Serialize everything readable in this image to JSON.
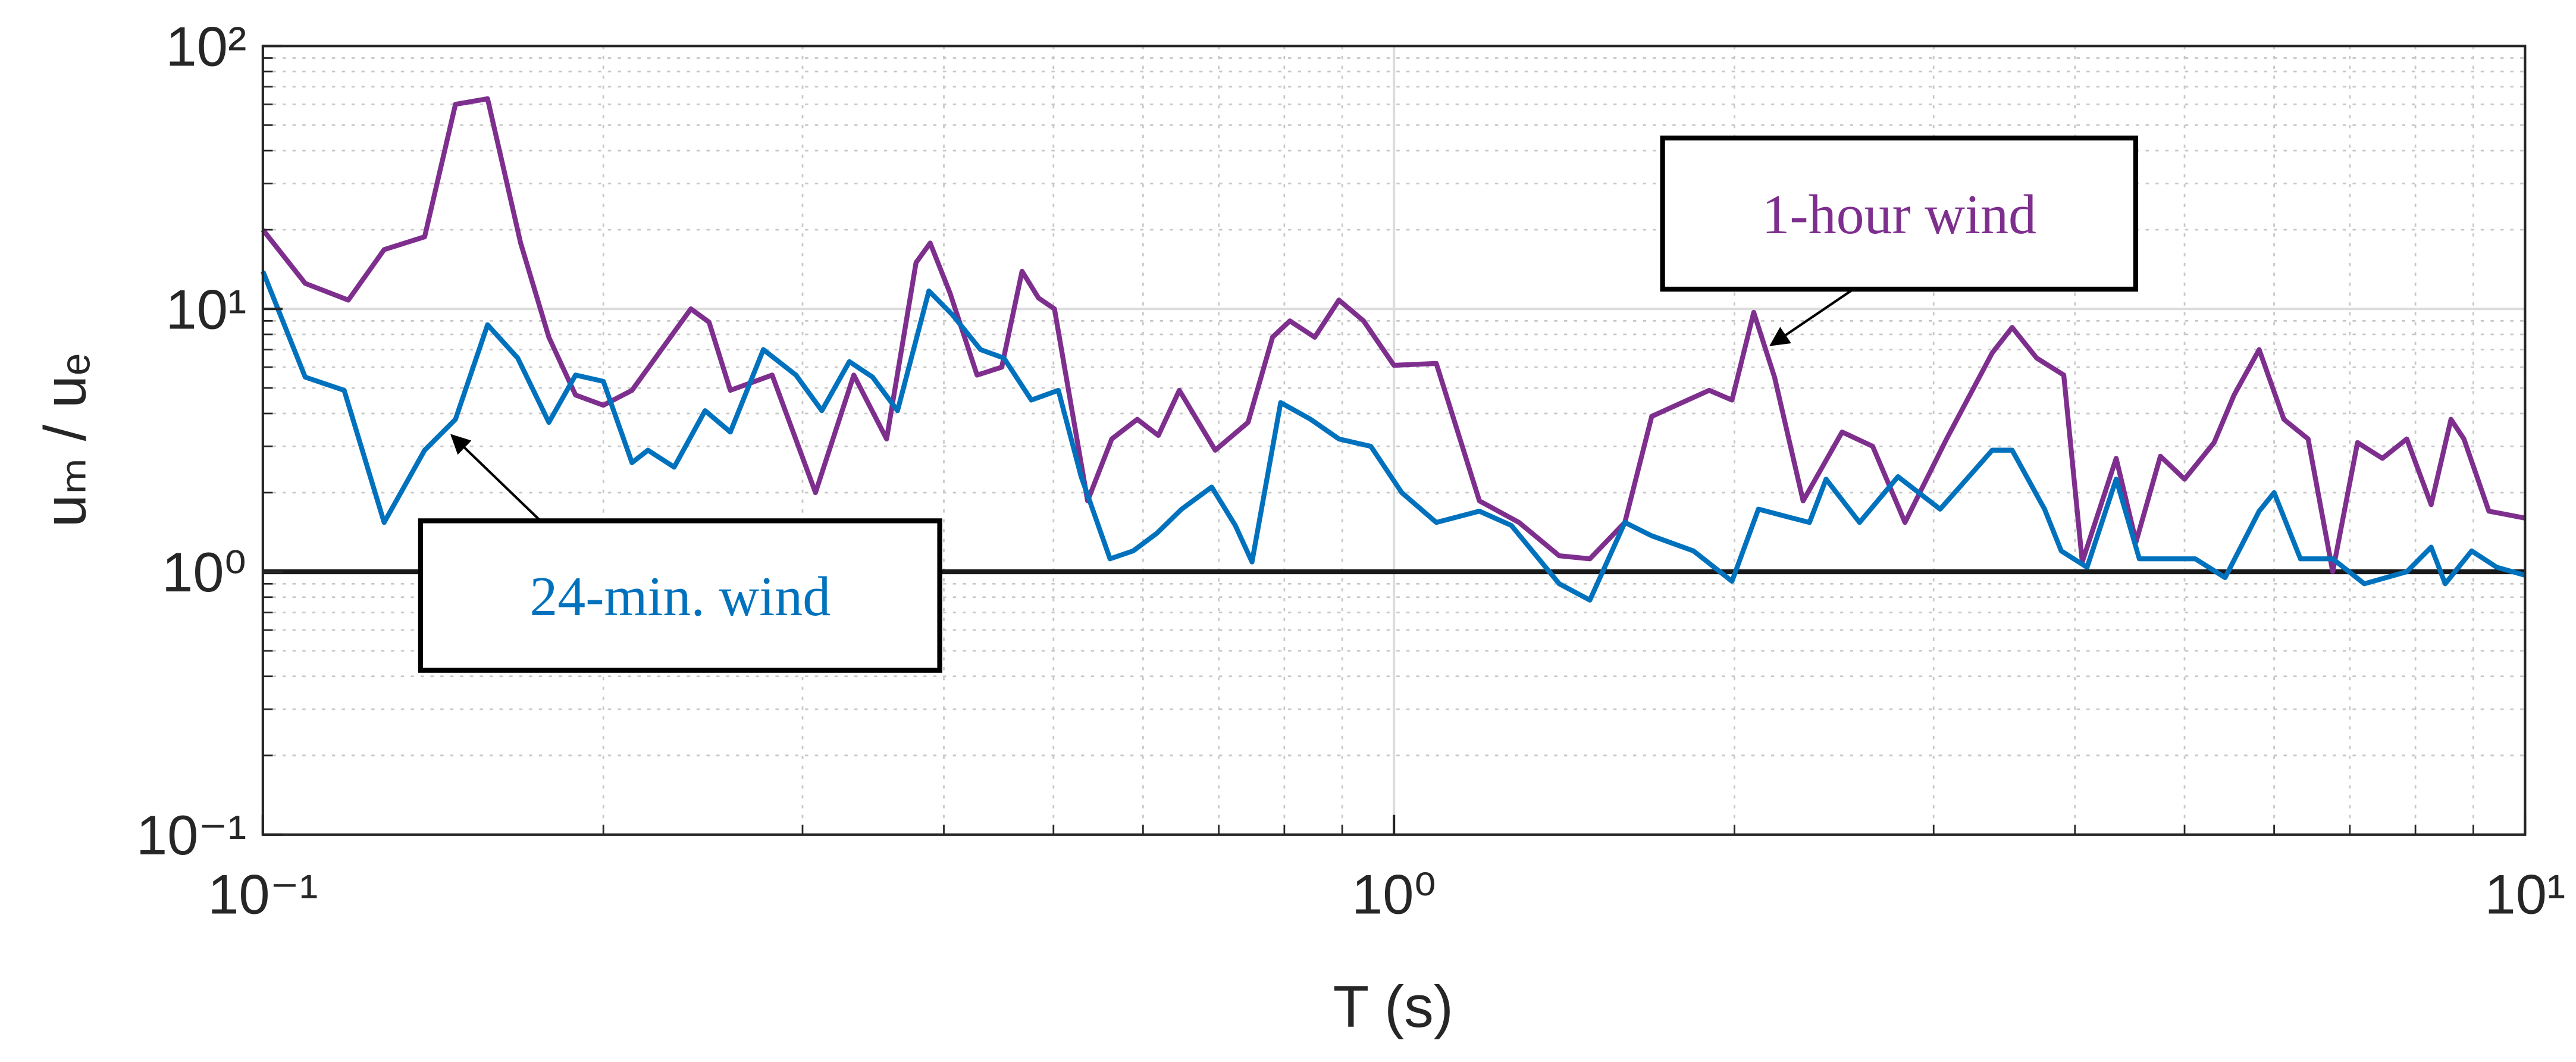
{
  "chart_data": {
    "type": "line",
    "x_label": "T (s)",
    "y_label": "uₘ / uₑ",
    "xscale": "log",
    "yscale": "log",
    "xlim": [
      0.1,
      10
    ],
    "ylim": [
      0.1,
      100
    ],
    "xticks": [
      {
        "value": 0.1,
        "label": "10⁻¹"
      },
      {
        "value": 1,
        "label": "10⁰"
      },
      {
        "value": 10,
        "label": "10¹"
      }
    ],
    "yticks": [
      {
        "value": 0.1,
        "label": "10⁻¹"
      },
      {
        "value": 1,
        "label": "10⁰"
      },
      {
        "value": 10,
        "label": "10¹"
      },
      {
        "value": 100,
        "label": "10²"
      }
    ],
    "grid": true,
    "minor_grid": true,
    "reference_line": 1,
    "series": [
      {
        "name": "1-hour wind",
        "color": "#7e2f8e",
        "x": [
          0.1,
          0.109,
          0.119,
          0.128,
          0.139,
          0.148,
          0.158,
          0.169,
          0.179,
          0.189,
          0.2,
          0.212,
          0.239,
          0.248,
          0.259,
          0.282,
          0.308,
          0.333,
          0.356,
          0.378,
          0.389,
          0.405,
          0.428,
          0.45,
          0.469,
          0.485,
          0.501,
          0.536,
          0.563,
          0.593,
          0.619,
          0.646,
          0.695,
          0.743,
          0.781,
          0.809,
          0.851,
          0.894,
          0.94,
          1.0,
          1.09,
          1.19,
          1.29,
          1.4,
          1.49,
          1.6,
          1.69,
          1.9,
          1.99,
          2.08,
          2.17,
          2.3,
          2.49,
          2.65,
          2.83,
          3.08,
          3.38,
          3.52,
          3.7,
          3.91,
          4.06,
          4.35,
          4.53,
          4.76,
          5.0,
          5.31,
          5.53,
          5.82,
          6.12,
          6.43,
          6.76,
          7.11,
          7.48,
          7.86,
          8.26,
          8.6,
          8.83,
          9.29,
          10
        ],
        "values": [
          20,
          12.5,
          10.8,
          16.8,
          18.8,
          60,
          63,
          17.8,
          7.8,
          4.7,
          4.3,
          4.9,
          10,
          8.9,
          4.9,
          5.6,
          2.0,
          5.6,
          3.2,
          15,
          17.8,
          11.5,
          5.6,
          6.0,
          13.9,
          11,
          10,
          1.86,
          3.2,
          3.8,
          3.3,
          4.9,
          2.9,
          3.7,
          7.8,
          9.0,
          7.8,
          10.8,
          9,
          6.1,
          6.2,
          1.86,
          1.54,
          1.15,
          1.12,
          1.54,
          3.9,
          4.9,
          4.5,
          9.7,
          5.5,
          1.86,
          3.4,
          3.0,
          1.54,
          3.2,
          6.8,
          8.5,
          6.5,
          5.6,
          1.09,
          2.7,
          1.3,
          2.75,
          2.25,
          3.1,
          4.7,
          7.0,
          3.8,
          3.2,
          1.0,
          3.1,
          2.7,
          3.2,
          1.8,
          3.8,
          3.2,
          1.7,
          1.6
        ]
      },
      {
        "name": "24-min. wind",
        "color": "#0072bd",
        "x": [
          0.1,
          0.109,
          0.118,
          0.128,
          0.139,
          0.148,
          0.158,
          0.168,
          0.179,
          0.189,
          0.2,
          0.212,
          0.219,
          0.231,
          0.246,
          0.259,
          0.277,
          0.296,
          0.312,
          0.33,
          0.346,
          0.364,
          0.388,
          0.407,
          0.431,
          0.452,
          0.478,
          0.505,
          0.529,
          0.561,
          0.588,
          0.617,
          0.649,
          0.69,
          0.724,
          0.749,
          0.794,
          0.844,
          0.894,
          0.954,
          1.016,
          1.09,
          1.19,
          1.27,
          1.4,
          1.49,
          1.6,
          1.69,
          1.84,
          1.99,
          2.1,
          2.25,
          2.33,
          2.41,
          2.58,
          2.79,
          3.04,
          3.38,
          3.52,
          3.76,
          3.89,
          4.1,
          4.35,
          4.56,
          4.86,
          5.11,
          5.43,
          5.82,
          6.0,
          6.33,
          6.76,
          7.21,
          7.86,
          8.26,
          8.5,
          8.97,
          9.44,
          10
        ],
        "values": [
          13.9,
          5.5,
          4.9,
          1.54,
          2.9,
          3.8,
          8.7,
          6.5,
          3.7,
          5.6,
          5.3,
          2.6,
          2.9,
          2.5,
          4.1,
          3.4,
          7.0,
          5.6,
          4.1,
          6.3,
          5.5,
          4.1,
          11.7,
          9.5,
          7.0,
          6.5,
          4.5,
          4.9,
          2.3,
          1.12,
          1.2,
          1.4,
          1.73,
          2.1,
          1.5,
          1.09,
          4.4,
          3.8,
          3.2,
          3.0,
          2.0,
          1.54,
          1.7,
          1.5,
          0.9,
          0.78,
          1.54,
          1.37,
          1.2,
          0.92,
          1.73,
          1.6,
          1.54,
          2.25,
          1.54,
          2.3,
          1.73,
          2.9,
          2.9,
          1.73,
          1.2,
          1.04,
          2.25,
          1.12,
          1.12,
          1.12,
          0.95,
          1.7,
          2.0,
          1.12,
          1.12,
          0.9,
          1.0,
          1.24,
          0.9,
          1.2,
          1.04,
          0.97
        ]
      }
    ]
  }
}
